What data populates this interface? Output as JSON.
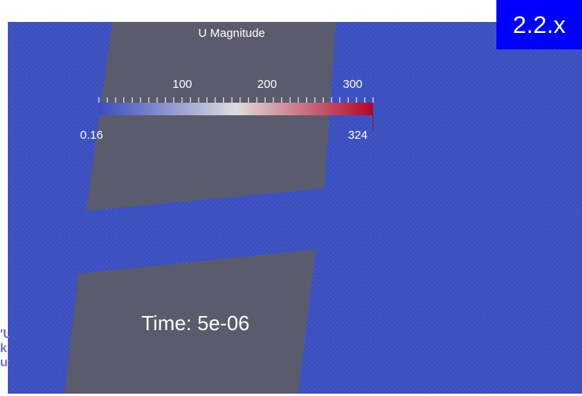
{
  "version_badge": {
    "label": "2.2.x",
    "background": "#0000ff"
  },
  "colorbar": {
    "title": "U Magnitude",
    "min_label": "0.16",
    "max_label": "324",
    "ticks": [
      {
        "label": "100",
        "value": 100
      },
      {
        "label": "200",
        "value": 200
      },
      {
        "label": "300",
        "value": 300
      }
    ],
    "min": 0.16,
    "max": 324,
    "colormap": [
      "#3b4cc0",
      "#dddddd",
      "#b40426"
    ]
  },
  "time_label": "Time: 5e-06",
  "colors": {
    "flow_field": "#3a4fbf",
    "solid_regions": "#5a5c6e"
  }
}
